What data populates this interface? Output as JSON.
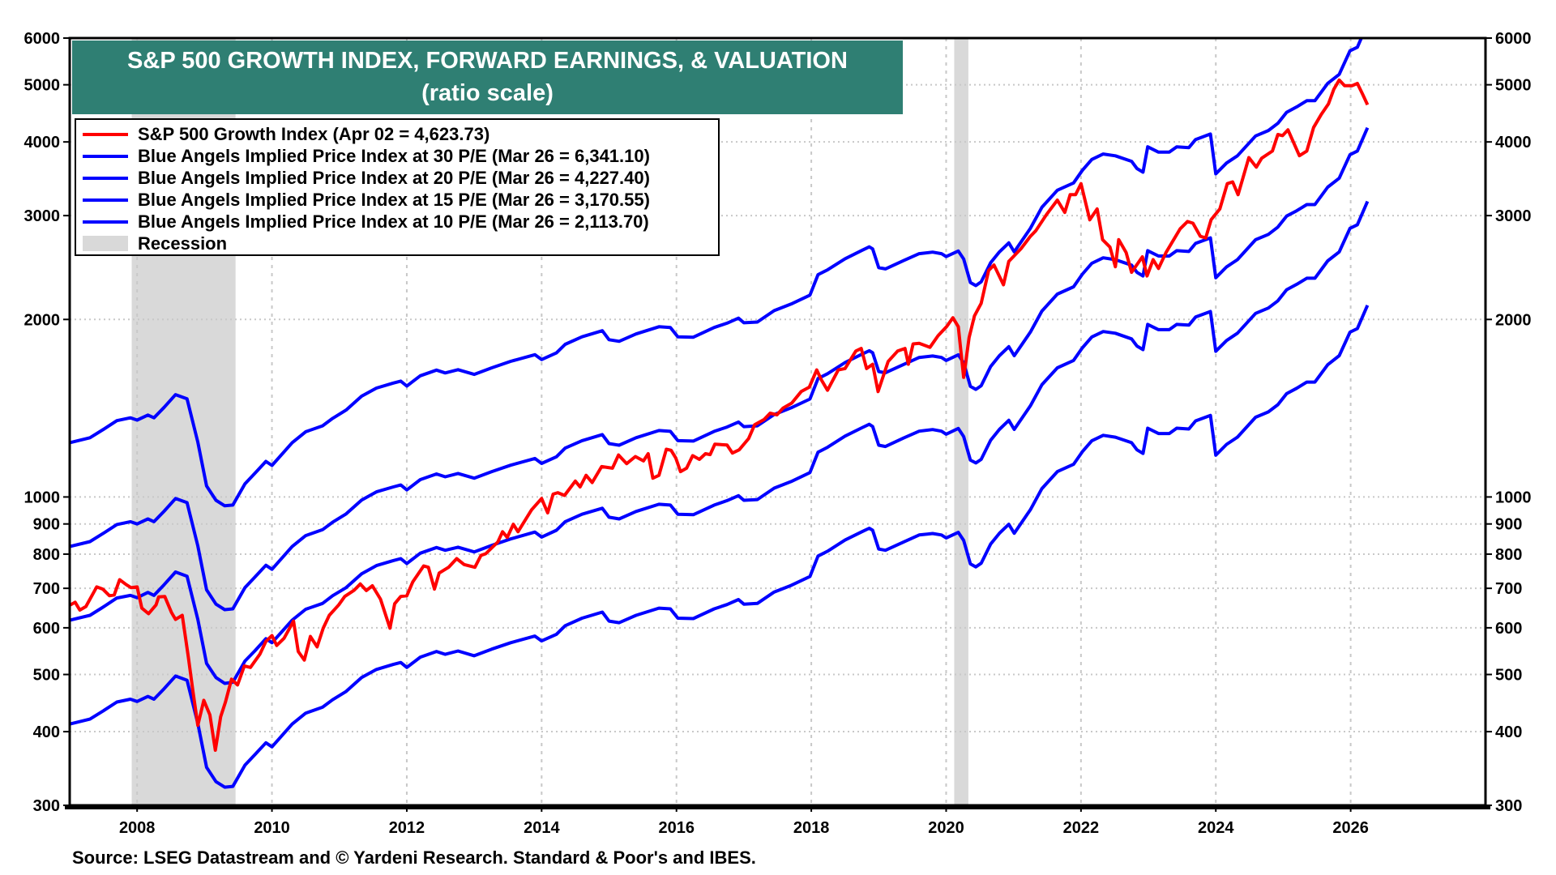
{
  "chart_data": {
    "type": "line",
    "title": "S&P 500 GROWTH INDEX, FORWARD EARNINGS, & VALUATION",
    "subtitle": "(ratio scale)",
    "source": "Source: LSEG Datastream and © Yardeni Research. Standard & Poor's and IBES.",
    "y_scale": "log",
    "ylim": [
      300,
      6000
    ],
    "xlim": [
      2007.0,
      2028.0
    ],
    "y_ticks": [
      300,
      400,
      500,
      600,
      700,
      800,
      900,
      1000,
      2000,
      3000,
      4000,
      5000,
      6000
    ],
    "x_ticks": [
      "2008",
      "2010",
      "2012",
      "2014",
      "2016",
      "2018",
      "2020",
      "2022",
      "2024",
      "2026"
    ],
    "grid": true,
    "legend_placement": "top-left",
    "recessions": [
      {
        "start": 2007.92,
        "end": 2009.46
      },
      {
        "start": 2020.12,
        "end": 2020.33
      }
    ],
    "recession_label": "Recession",
    "recession_color": "#d9d9d9",
    "red_series": {
      "name": "S&P 500 Growth Index (Apr 02 = 4,623.73)",
      "color": "#ff0000",
      "x": [
        2007.01,
        2007.08,
        2007.15,
        2007.24,
        2007.36,
        2007.4,
        2007.49,
        2007.59,
        2007.66,
        2007.74,
        2007.84,
        2007.91,
        2008.0,
        2008.07,
        2008.17,
        2008.28,
        2008.32,
        2008.41,
        2008.51,
        2008.57,
        2008.67,
        2008.76,
        2008.83,
        2008.9,
        2008.99,
        2009.08,
        2009.16,
        2009.24,
        2009.31,
        2009.4,
        2009.49,
        2009.59,
        2009.68,
        2009.82,
        2009.91,
        2010.0,
        2010.07,
        2010.18,
        2010.32,
        2010.39,
        2010.48,
        2010.57,
        2010.67,
        2010.76,
        2010.85,
        2010.99,
        2011.08,
        2011.22,
        2011.31,
        2011.4,
        2011.49,
        2011.61,
        2011.75,
        2011.82,
        2011.91,
        2012.0,
        2012.09,
        2012.25,
        2012.32,
        2012.41,
        2012.48,
        2012.62,
        2012.74,
        2012.85,
        2013.01,
        2013.1,
        2013.17,
        2013.35,
        2013.42,
        2013.49,
        2013.58,
        2013.65,
        2013.85,
        2014.0,
        2014.09,
        2014.17,
        2014.24,
        2014.34,
        2014.5,
        2014.57,
        2014.66,
        2014.75,
        2014.89,
        2015.05,
        2015.14,
        2015.26,
        2015.39,
        2015.51,
        2015.58,
        2015.65,
        2015.74,
        2015.85,
        2015.92,
        2015.99,
        2016.06,
        2016.15,
        2016.24,
        2016.34,
        2016.43,
        2016.5,
        2016.57,
        2016.75,
        2016.83,
        2016.93,
        2017.07,
        2017.16,
        2017.3,
        2017.39,
        2017.49,
        2017.58,
        2017.71,
        2017.85,
        2017.97,
        2018.08,
        2018.15,
        2018.24,
        2018.4,
        2018.5,
        2018.66,
        2018.74,
        2018.82,
        2018.91,
        2018.99,
        2019.14,
        2019.28,
        2019.39,
        2019.44,
        2019.51,
        2019.6,
        2019.76,
        2019.88,
        2020.01,
        2020.1,
        2020.18,
        2020.26,
        2020.34,
        2020.42,
        2020.52,
        2020.63,
        2020.71,
        2020.85,
        2020.93,
        2021.11,
        2021.25,
        2021.33,
        2021.49,
        2021.65,
        2021.76,
        2021.84,
        2021.92,
        2022.0,
        2022.13,
        2022.24,
        2022.32,
        2022.43,
        2022.51,
        2022.56,
        2022.67,
        2022.75,
        2022.91,
        2022.98,
        2023.07,
        2023.15,
        2023.26,
        2023.47,
        2023.58,
        2023.66,
        2023.77,
        2023.85,
        2023.93,
        2024.06,
        2024.17,
        2024.25,
        2024.33,
        2024.49,
        2024.6,
        2024.68,
        2024.84,
        2024.92,
        2024.99,
        2025.07,
        2025.24,
        2025.35,
        2025.45,
        2025.56,
        2025.67,
        2025.75,
        2025.83,
        2025.91,
        2026.02,
        2026.1,
        2026.18,
        2026.25
      ],
      "values": [
        656,
        663,
        643,
        652,
        690,
        704,
        698,
        680,
        682,
        724,
        710,
        702,
        704,
        648,
        634,
        656,
        677,
        678,
        637,
        620,
        630,
        535,
        467,
        410,
        452,
        427,
        372,
        424,
        449,
        491,
        480,
        517,
        514,
        541,
        569,
        582,
        560,
        576,
        616,
        547,
        529,
        580,
        557,
        599,
        630,
        656,
        678,
        695,
        712,
        694,
        707,
        671,
        599,
        659,
        678,
        680,
        718,
        764,
        760,
        698,
        743,
        760,
        786,
        768,
        760,
        796,
        801,
        839,
        873,
        854,
        899,
        873,
        951,
        994,
        940,
        1011,
        1017,
        1006,
        1064,
        1040,
        1088,
        1058,
        1126,
        1119,
        1178,
        1139,
        1171,
        1151,
        1184,
        1076,
        1088,
        1205,
        1200,
        1164,
        1104,
        1119,
        1175,
        1158,
        1184,
        1180,
        1229,
        1225,
        1187,
        1202,
        1256,
        1326,
        1353,
        1387,
        1378,
        1415,
        1443,
        1509,
        1535,
        1642,
        1579,
        1517,
        1642,
        1651,
        1768,
        1786,
        1651,
        1679,
        1509,
        1697,
        1768,
        1786,
        1679,
        1818,
        1822,
        1794,
        1877,
        1946,
        2013,
        1944,
        1595,
        1863,
        2028,
        2130,
        2422,
        2474,
        2290,
        2509,
        2636,
        2768,
        2828,
        3013,
        3187,
        3037,
        3255,
        3255,
        3398,
        2951,
        3079,
        2731,
        2654,
        2457,
        2731,
        2596,
        2404,
        2554,
        2370,
        2526,
        2440,
        2596,
        2848,
        2932,
        2912,
        2768,
        2749,
        2951,
        3079,
        3398,
        3422,
        3255,
        3763,
        3625,
        3753,
        3860,
        4118,
        4099,
        4193,
        3790,
        3860,
        4233,
        4445,
        4640,
        4911,
        5093,
        4981,
        4981,
        5026,
        4812,
        4624
      ]
    },
    "blue_x": [
      2007.0,
      2007.3,
      2007.5,
      2007.7,
      2007.9,
      2008.0,
      2008.16,
      2008.25,
      2008.4,
      2008.57,
      2008.74,
      2008.9,
      2009.03,
      2009.17,
      2009.3,
      2009.42,
      2009.6,
      2009.75,
      2009.91,
      2010.0,
      2010.3,
      2010.5,
      2010.75,
      2010.9,
      2011.1,
      2011.33,
      2011.55,
      2011.8,
      2011.91,
      2012.0,
      2012.2,
      2012.44,
      2012.57,
      2012.76,
      2013.0,
      2013.26,
      2013.54,
      2013.9,
      2014.0,
      2014.22,
      2014.35,
      2014.6,
      2014.9,
      2015.0,
      2015.15,
      2015.4,
      2015.74,
      2015.91,
      2016.02,
      2016.25,
      2016.56,
      2016.75,
      2016.92,
      2017.0,
      2017.2,
      2017.45,
      2017.7,
      2017.98,
      2018.1,
      2018.24,
      2018.5,
      2018.75,
      2018.86,
      2018.91,
      2019.0,
      2019.1,
      2019.37,
      2019.6,
      2019.8,
      2019.93,
      2020.0,
      2020.18,
      2020.26,
      2020.36,
      2020.44,
      2020.52,
      2020.66,
      2020.79,
      2020.93,
      2021.01,
      2021.25,
      2021.42,
      2021.65,
      2021.89,
      2022.02,
      2022.16,
      2022.33,
      2022.51,
      2022.75,
      2022.83,
      2022.92,
      2022.99,
      2023.15,
      2023.31,
      2023.42,
      2023.6,
      2023.7,
      2023.92,
      2024.0,
      2024.16,
      2024.32,
      2024.59,
      2024.78,
      2024.92,
      2025.05,
      2025.2,
      2025.35,
      2025.47,
      2025.66,
      2025.83,
      2025.99,
      2026.1,
      2026.25
    ],
    "blue_series": [
      {
        "name": "Blue Angels Implied Price Index at 30 P/E (Mar 26 = 6,341.10)",
        "color": "#0000ff",
        "values": [
          1236,
          1260,
          1302,
          1347,
          1362,
          1350,
          1377,
          1362,
          1419,
          1491,
          1467,
          1239,
          1044,
          987,
          966,
          969,
          1053,
          1098,
          1149,
          1131,
          1236,
          1290,
          1320,
          1359,
          1404,
          1482,
          1530,
          1560,
          1572,
          1542,
          1605,
          1641,
          1623,
          1644,
          1614,
          1656,
          1698,
          1743,
          1710,
          1755,
          1815,
          1869,
          1914,
          1848,
          1836,
          1890,
          1944,
          1938,
          1869,
          1866,
          1938,
          1971,
          2010,
          1974,
          1980,
          2070,
          2124,
          2199,
          2382,
          2427,
          2535,
          2619,
          2655,
          2634,
          2448,
          2436,
          2517,
          2586,
          2601,
          2586,
          2556,
          2613,
          2532,
          2310,
          2283,
          2316,
          2496,
          2604,
          2697,
          2604,
          2856,
          3099,
          3312,
          3408,
          3579,
          3735,
          3816,
          3789,
          3708,
          3606,
          3555,
          3924,
          3843,
          3843,
          3924,
          3912,
          4038,
          4125,
          3531,
          3684,
          3789,
          4095,
          4182,
          4302,
          4491,
          4587,
          4698,
          4698,
          5028,
          5208,
          5709,
          5790,
          6341
        ]
      },
      {
        "name": "Blue Angels Implied Price Index at 20 P/E (Mar 26 = 4,227.40)",
        "color": "#0000ff",
        "values": [
          824,
          840,
          868,
          898,
          908,
          900,
          918,
          908,
          946,
          994,
          978,
          826,
          696,
          658,
          644,
          646,
          702,
          732,
          766,
          754,
          824,
          860,
          880,
          906,
          936,
          988,
          1020,
          1040,
          1048,
          1028,
          1070,
          1094,
          1082,
          1096,
          1076,
          1104,
          1132,
          1162,
          1140,
          1170,
          1210,
          1246,
          1276,
          1232,
          1224,
          1260,
          1296,
          1292,
          1246,
          1244,
          1292,
          1314,
          1340,
          1316,
          1320,
          1380,
          1416,
          1466,
          1588,
          1618,
          1690,
          1746,
          1770,
          1756,
          1632,
          1624,
          1678,
          1724,
          1734,
          1724,
          1704,
          1742,
          1688,
          1540,
          1522,
          1544,
          1664,
          1736,
          1798,
          1736,
          1904,
          2066,
          2208,
          2272,
          2386,
          2490,
          2544,
          2526,
          2472,
          2404,
          2370,
          2616,
          2562,
          2562,
          2616,
          2608,
          2692,
          2750,
          2354,
          2456,
          2526,
          2730,
          2788,
          2868,
          2994,
          3058,
          3132,
          3132,
          3352,
          3472,
          3806,
          3860,
          4227
        ]
      },
      {
        "name": "Blue Angels Implied Price Index at 15 P/E (Mar 26 = 3,170.55)",
        "color": "#0000ff",
        "values": [
          618,
          630,
          651,
          674,
          681,
          675,
          689,
          681,
          710,
          746,
          734,
          620,
          522,
          494,
          483,
          485,
          527,
          549,
          575,
          566,
          618,
          645,
          660,
          680,
          702,
          741,
          765,
          780,
          786,
          771,
          803,
          821,
          812,
          822,
          807,
          828,
          849,
          872,
          855,
          878,
          908,
          935,
          957,
          924,
          918,
          945,
          972,
          969,
          935,
          933,
          969,
          986,
          1005,
          987,
          990,
          1035,
          1062,
          1100,
          1191,
          1214,
          1268,
          1310,
          1328,
          1317,
          1224,
          1218,
          1259,
          1293,
          1301,
          1293,
          1278,
          1307,
          1266,
          1155,
          1142,
          1158,
          1248,
          1302,
          1349,
          1302,
          1428,
          1550,
          1656,
          1704,
          1790,
          1868,
          1908,
          1895,
          1854,
          1803,
          1778,
          1962,
          1922,
          1922,
          1962,
          1956,
          2019,
          2063,
          1766,
          1842,
          1895,
          2048,
          2091,
          2151,
          2246,
          2294,
          2349,
          2349,
          2514,
          2604,
          2855,
          2895,
          3171
        ]
      },
      {
        "name": "Blue Angels Implied Price Index at 10 P/E (Mar 26 = 2,113.70)",
        "color": "#0000ff",
        "values": [
          412,
          420,
          434,
          449,
          454,
          450,
          459,
          454,
          473,
          497,
          489,
          413,
          348,
          329,
          322,
          323,
          351,
          366,
          383,
          377,
          412,
          430,
          440,
          453,
          468,
          494,
          510,
          520,
          524,
          514,
          535,
          547,
          541,
          548,
          538,
          552,
          566,
          581,
          570,
          585,
          605,
          623,
          638,
          616,
          612,
          630,
          648,
          646,
          623,
          622,
          646,
          657,
          670,
          658,
          660,
          690,
          708,
          733,
          794,
          809,
          845,
          873,
          885,
          878,
          816,
          812,
          839,
          862,
          867,
          862,
          852,
          871,
          844,
          770,
          761,
          772,
          832,
          868,
          899,
          868,
          952,
          1033,
          1104,
          1136,
          1193,
          1245,
          1272,
          1263,
          1236,
          1202,
          1185,
          1308,
          1281,
          1281,
          1308,
          1304,
          1346,
          1375,
          1177,
          1228,
          1263,
          1365,
          1394,
          1434,
          1497,
          1529,
          1566,
          1566,
          1676,
          1736,
          1903,
          1930,
          2114
        ]
      }
    ],
    "title_bg_color": "#2f7f73"
  }
}
